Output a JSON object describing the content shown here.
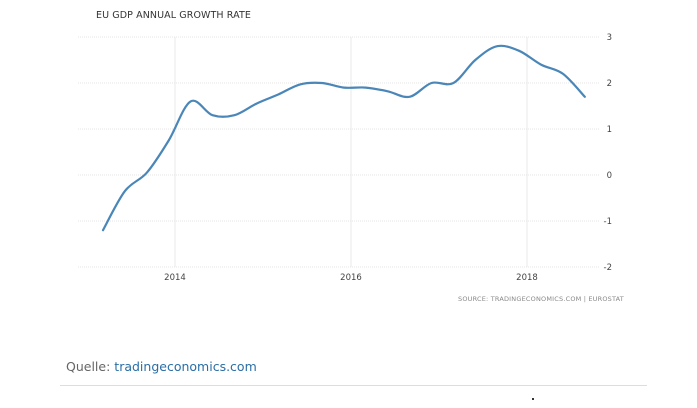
{
  "chart_data": {
    "type": "line",
    "title": "EU GDP ANNUAL GROWTH RATE",
    "xlabel": "",
    "ylabel": "",
    "x_ticks": [
      "2014",
      "2016",
      "2018"
    ],
    "x_tick_values": [
      2014,
      2016,
      2018
    ],
    "y_ticks": [
      "3",
      "2",
      "1",
      "0",
      "-1",
      "-2"
    ],
    "y_tick_values": [
      3,
      2,
      1,
      0,
      -1,
      -2
    ],
    "ylim": [
      -2,
      3
    ],
    "xlim": [
      2012.9,
      2018.9
    ],
    "grid": true,
    "series": [
      {
        "name": "EU GDP Annual Growth Rate",
        "color": "#4a86b8",
        "x": [
          2013.0,
          2013.25,
          2013.5,
          2013.75,
          2014.0,
          2014.25,
          2014.5,
          2014.75,
          2015.0,
          2015.25,
          2015.5,
          2015.75,
          2016.0,
          2016.25,
          2016.5,
          2016.75,
          2017.0,
          2017.25,
          2017.5,
          2017.75,
          2018.0,
          2018.25,
          2018.5
        ],
        "values": [
          -1.2,
          -0.35,
          0.05,
          0.75,
          1.6,
          1.3,
          1.3,
          1.55,
          1.75,
          1.97,
          2.0,
          1.9,
          1.9,
          1.82,
          1.7,
          2.0,
          2.0,
          2.5,
          2.8,
          2.7,
          2.4,
          2.2,
          1.7
        ]
      }
    ],
    "source": "SOURCE: TRADINGECONOMICS.COM | EUROSTAT"
  },
  "footer": {
    "quelle_label": "Quelle:",
    "quelle_link": "tradingeconomics.com"
  }
}
